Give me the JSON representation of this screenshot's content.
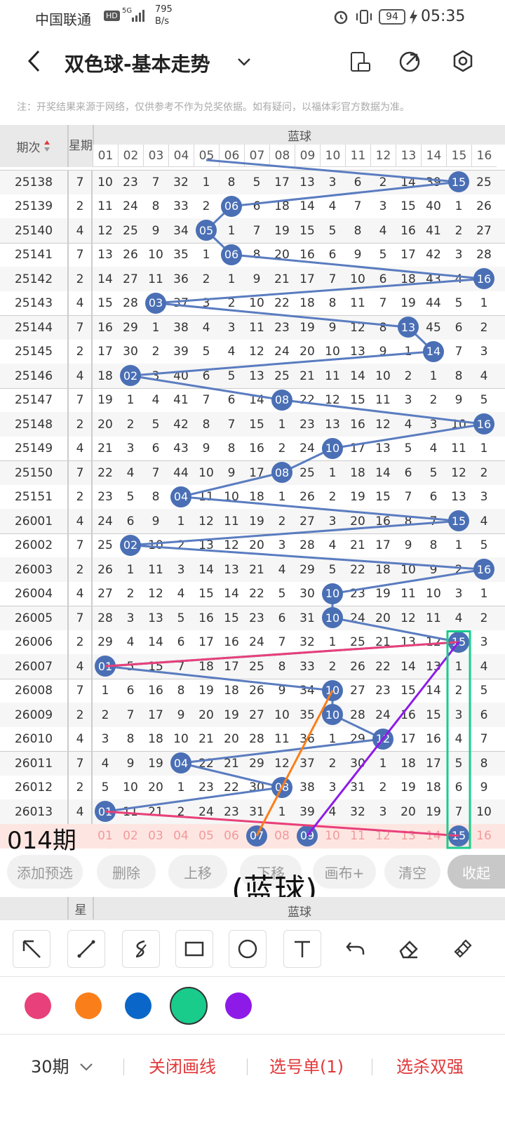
{
  "status": {
    "carrier": "中国联通",
    "hd": "HD",
    "net": "5G",
    "speed_value": "795",
    "speed_unit": "B/s",
    "battery": "94",
    "time": "05:35"
  },
  "title": {
    "text": "双色球-基本走势"
  },
  "notice": "注：开奖结果来源于网络，仅供参考不作为兑奖依据。如有疑问，以福体彩官方数据为准。",
  "grid_header": {
    "period": "期次",
    "week": "星期",
    "blue": "蓝球",
    "columns": [
      "01",
      "02",
      "03",
      "04",
      "05",
      "06",
      "07",
      "08",
      "09",
      "10",
      "11",
      "12",
      "13",
      "14",
      "15",
      "16"
    ]
  },
  "rows": [
    {
      "period": "25138",
      "week": "7",
      "ball": 15,
      "cells": [
        "10",
        "23",
        "7",
        "32",
        "1",
        "8",
        "5",
        "17",
        "13",
        "3",
        "6",
        "2",
        "14",
        "39",
        "15",
        "25"
      ]
    },
    {
      "period": "25139",
      "week": "2",
      "ball": 6,
      "cells": [
        "11",
        "24",
        "8",
        "33",
        "2",
        "06",
        "6",
        "18",
        "14",
        "4",
        "7",
        "3",
        "15",
        "40",
        "1",
        "26"
      ]
    },
    {
      "period": "25140",
      "week": "4",
      "ball": 5,
      "cells": [
        "12",
        "25",
        "9",
        "34",
        "05",
        "1",
        "7",
        "19",
        "15",
        "5",
        "8",
        "4",
        "16",
        "41",
        "2",
        "27"
      ]
    },
    {
      "period": "25141",
      "week": "7",
      "ball": 6,
      "cells": [
        "13",
        "26",
        "10",
        "35",
        "1",
        "06",
        "8",
        "20",
        "16",
        "6",
        "9",
        "5",
        "17",
        "42",
        "3",
        "28"
      ]
    },
    {
      "period": "25142",
      "week": "2",
      "ball": 16,
      "cells": [
        "14",
        "27",
        "11",
        "36",
        "2",
        "1",
        "9",
        "21",
        "17",
        "7",
        "10",
        "6",
        "18",
        "43",
        "4",
        "16"
      ]
    },
    {
      "period": "25143",
      "week": "4",
      "ball": 3,
      "cells": [
        "15",
        "28",
        "03",
        "37",
        "3",
        "2",
        "10",
        "22",
        "18",
        "8",
        "11",
        "7",
        "19",
        "44",
        "5",
        "1"
      ]
    },
    {
      "period": "25144",
      "week": "7",
      "ball": 13,
      "cells": [
        "16",
        "29",
        "1",
        "38",
        "4",
        "3",
        "11",
        "23",
        "19",
        "9",
        "12",
        "8",
        "13",
        "45",
        "6",
        "2"
      ]
    },
    {
      "period": "25145",
      "week": "2",
      "ball": 14,
      "cells": [
        "17",
        "30",
        "2",
        "39",
        "5",
        "4",
        "12",
        "24",
        "20",
        "10",
        "13",
        "9",
        "1",
        "14",
        "7",
        "3"
      ]
    },
    {
      "period": "25146",
      "week": "4",
      "ball": 2,
      "cells": [
        "18",
        "02",
        "3",
        "40",
        "6",
        "5",
        "13",
        "25",
        "21",
        "11",
        "14",
        "10",
        "2",
        "1",
        "8",
        "4"
      ]
    },
    {
      "period": "25147",
      "week": "7",
      "ball": 8,
      "cells": [
        "19",
        "1",
        "4",
        "41",
        "7",
        "6",
        "14",
        "08",
        "22",
        "12",
        "15",
        "11",
        "3",
        "2",
        "9",
        "5"
      ]
    },
    {
      "period": "25148",
      "week": "2",
      "ball": 16,
      "cells": [
        "20",
        "2",
        "5",
        "42",
        "8",
        "7",
        "15",
        "1",
        "23",
        "13",
        "16",
        "12",
        "4",
        "3",
        "10",
        "16"
      ]
    },
    {
      "period": "25149",
      "week": "4",
      "ball": 10,
      "cells": [
        "21",
        "3",
        "6",
        "43",
        "9",
        "8",
        "16",
        "2",
        "24",
        "10",
        "17",
        "13",
        "5",
        "4",
        "11",
        "1"
      ]
    },
    {
      "period": "25150",
      "week": "7",
      "ball": 8,
      "cells": [
        "22",
        "4",
        "7",
        "44",
        "10",
        "9",
        "17",
        "08",
        "25",
        "1",
        "18",
        "14",
        "6",
        "5",
        "12",
        "2"
      ]
    },
    {
      "period": "25151",
      "week": "2",
      "ball": 4,
      "cells": [
        "23",
        "5",
        "8",
        "04",
        "11",
        "10",
        "18",
        "1",
        "26",
        "2",
        "19",
        "15",
        "7",
        "6",
        "13",
        "3"
      ]
    },
    {
      "period": "26001",
      "week": "4",
      "ball": 15,
      "cells": [
        "24",
        "6",
        "9",
        "1",
        "12",
        "11",
        "19",
        "2",
        "27",
        "3",
        "20",
        "16",
        "8",
        "7",
        "15",
        "4"
      ]
    },
    {
      "period": "26002",
      "week": "7",
      "ball": 2,
      "cells": [
        "25",
        "02",
        "10",
        "2",
        "13",
        "12",
        "20",
        "3",
        "28",
        "4",
        "21",
        "17",
        "9",
        "8",
        "1",
        "5"
      ]
    },
    {
      "period": "26003",
      "week": "2",
      "ball": 16,
      "cells": [
        "26",
        "1",
        "11",
        "3",
        "14",
        "13",
        "21",
        "4",
        "29",
        "5",
        "22",
        "18",
        "10",
        "9",
        "2",
        "16"
      ]
    },
    {
      "period": "26004",
      "week": "4",
      "ball": 10,
      "cells": [
        "27",
        "2",
        "12",
        "4",
        "15",
        "14",
        "22",
        "5",
        "30",
        "10",
        "23",
        "19",
        "11",
        "10",
        "3",
        "1"
      ]
    },
    {
      "period": "26005",
      "week": "7",
      "ball": 10,
      "cells": [
        "28",
        "3",
        "13",
        "5",
        "16",
        "15",
        "23",
        "6",
        "31",
        "10",
        "24",
        "20",
        "12",
        "11",
        "4",
        "2"
      ]
    },
    {
      "period": "26006",
      "week": "2",
      "ball": 15,
      "cells": [
        "29",
        "4",
        "14",
        "6",
        "17",
        "16",
        "24",
        "7",
        "32",
        "1",
        "25",
        "21",
        "13",
        "12",
        "15",
        "3"
      ]
    },
    {
      "period": "26007",
      "week": "4",
      "ball": 1,
      "cells": [
        "01",
        "5",
        "15",
        "7",
        "18",
        "17",
        "25",
        "8",
        "33",
        "2",
        "26",
        "22",
        "14",
        "13",
        "1",
        "4"
      ]
    },
    {
      "period": "26008",
      "week": "7",
      "ball": 10,
      "cells": [
        "1",
        "6",
        "16",
        "8",
        "19",
        "18",
        "26",
        "9",
        "34",
        "10",
        "27",
        "23",
        "15",
        "14",
        "2",
        "5"
      ]
    },
    {
      "period": "26009",
      "week": "2",
      "ball": 10,
      "cells": [
        "2",
        "7",
        "17",
        "9",
        "20",
        "19",
        "27",
        "10",
        "35",
        "10",
        "28",
        "24",
        "16",
        "15",
        "3",
        "6"
      ]
    },
    {
      "period": "26010",
      "week": "4",
      "ball": 12,
      "cells": [
        "3",
        "8",
        "18",
        "10",
        "21",
        "20",
        "28",
        "11",
        "36",
        "1",
        "29",
        "12",
        "17",
        "16",
        "4",
        "7"
      ]
    },
    {
      "period": "26011",
      "week": "7",
      "ball": 4,
      "cells": [
        "4",
        "9",
        "19",
        "04",
        "22",
        "21",
        "29",
        "12",
        "37",
        "2",
        "30",
        "1",
        "18",
        "17",
        "5",
        "8"
      ]
    },
    {
      "period": "26012",
      "week": "2",
      "ball": 8,
      "cells": [
        "5",
        "10",
        "20",
        "1",
        "23",
        "22",
        "30",
        "08",
        "38",
        "3",
        "31",
        "2",
        "19",
        "18",
        "6",
        "9"
      ]
    },
    {
      "period": "26013",
      "week": "4",
      "ball": 1,
      "cells": [
        "01",
        "11",
        "21",
        "2",
        "24",
        "23",
        "31",
        "1",
        "39",
        "4",
        "32",
        "3",
        "20",
        "19",
        "7",
        "10"
      ]
    }
  ],
  "predict_row": {
    "label": "014期",
    "cells": [
      "01",
      "02",
      "03",
      "04",
      "05",
      "06",
      "07",
      "08",
      "09",
      "10",
      "11",
      "12",
      "13",
      "14",
      "15",
      "16"
    ],
    "selected": [
      "07",
      "09",
      "15"
    ]
  },
  "annotation": "(蓝球)",
  "toolbar": {
    "add": "添加预选",
    "delete": "删除",
    "up": "上移",
    "down": "下移",
    "canvas": "画布+",
    "clear": "清空",
    "collapse": "收起"
  },
  "mini_header": {
    "week": "星",
    "blue": "蓝球"
  },
  "colors": {
    "ball": "#4a6fb5",
    "line_blue": "#5a7cc0",
    "pink": "#e8407a",
    "orange": "#fa7f1a",
    "blue": "#0a66c8",
    "green": "#19cc8c",
    "purple": "#8e1ae8",
    "red_text": "#e0393b"
  },
  "bottom": {
    "periods": "30期",
    "close_draw": "关闭画线",
    "select_list": "选号单(1)",
    "select_kill": "选杀双强"
  }
}
